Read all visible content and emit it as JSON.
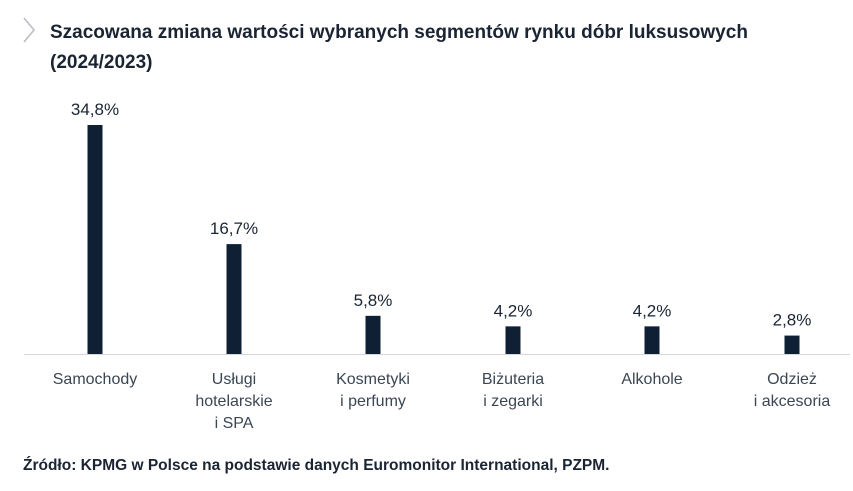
{
  "header": {
    "title": "Szacowana zmiana wartości wybranych segmentów rynku dóbr luksusowych (2024/2023)"
  },
  "chart_data": {
    "type": "bar",
    "title": "Szacowana zmiana wartości wybranych segmentów rynku dóbr luksusowych (2024/2023)",
    "categories": [
      [
        "Samochody"
      ],
      [
        "Usługi",
        "hotelarskie",
        "i SPA"
      ],
      [
        "Kosmetyki",
        "i perfumy"
      ],
      [
        "Biżuteria",
        "i zegarki"
      ],
      [
        "Alkohole"
      ],
      [
        "Odzież",
        "i akcesoria"
      ]
    ],
    "values": [
      34.8,
      16.7,
      5.8,
      4.2,
      4.2,
      2.8
    ],
    "value_labels": [
      "34,8%",
      "16,7%",
      "5,8%",
      "4,2%",
      "4,2%",
      "2,8%"
    ],
    "unit": "%",
    "ylim": [
      0,
      34.8
    ],
    "grid": false,
    "legend": "none",
    "bar_color": "#0f2035",
    "axis_color": "#d4d8dd"
  },
  "footer": {
    "source": "Źródło: KPMG w Polsce na podstawie danych Euromonitor International, PZPM."
  }
}
